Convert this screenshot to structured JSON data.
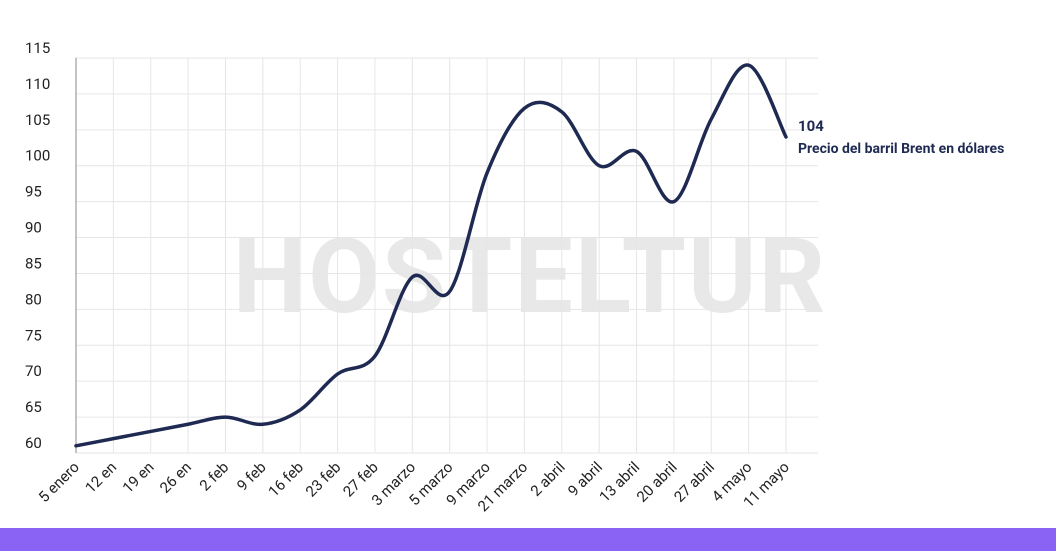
{
  "chart_data": {
    "type": "line",
    "watermark": "HOSTELTUR",
    "categories": [
      "5 enero",
      "12 en",
      "19 en",
      "26 en",
      "2 feb",
      "9 feb",
      "16 feb",
      "23 feb",
      "27 feb",
      "3 marzo",
      "5 marzo",
      "9 marzo",
      "21 marzo",
      "2 abril",
      "9 abril",
      "13 abril",
      "20 abril",
      "27 abril",
      "4 mayo",
      "11 mayo"
    ],
    "series": [
      {
        "name": "Precio del barril Brent en dólares",
        "color": "#1f2a52",
        "values": [
          61,
          62,
          63,
          64,
          65,
          64,
          66,
          71,
          73.5,
          84.5,
          82.5,
          99,
          108,
          107.5,
          100,
          102,
          95,
          106.5,
          114,
          104
        ]
      }
    ],
    "ylim": [
      60,
      115
    ],
    "yticks": [
      60,
      65,
      70,
      75,
      80,
      85,
      90,
      95,
      100,
      105,
      110,
      115
    ],
    "grid": true
  }
}
